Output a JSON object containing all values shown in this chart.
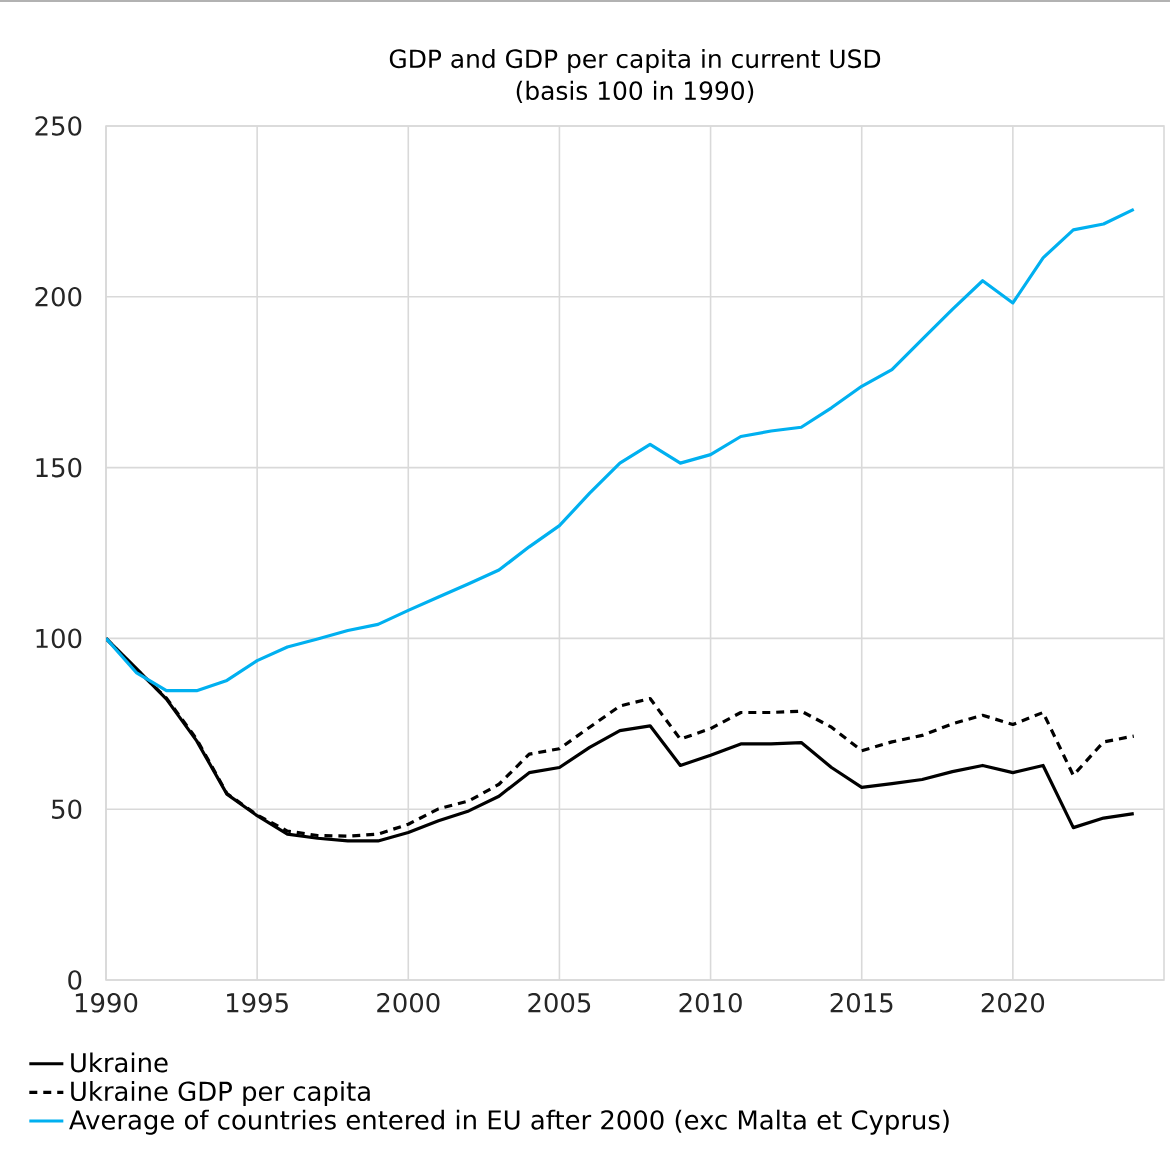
{
  "chart_data": {
    "type": "line",
    "title": "GDP and GDP per capita in current USD",
    "subtitle": "(basis 100 in 1990)",
    "x": [
      1990,
      1991,
      1992,
      1993,
      1994,
      1995,
      1996,
      1997,
      1998,
      1999,
      2000,
      2001,
      2002,
      2003,
      2004,
      2005,
      2006,
      2007,
      2008,
      2009,
      2010,
      2011,
      2012,
      2013,
      2014,
      2015,
      2016,
      2017,
      2018,
      2019,
      2020,
      2021,
      2022,
      2023,
      2024
    ],
    "series": [
      {
        "name": "Ukraine",
        "color": "#000000",
        "line_style": "solid",
        "values": [
          100,
          91.2,
          82.2,
          70,
          54.4,
          48.1,
          42.7,
          41.5,
          40.7,
          40.7,
          43.2,
          46.6,
          49.5,
          53.8,
          60.7,
          62.2,
          68.1,
          73,
          74.4,
          62.8,
          65.8,
          69.1,
          69.1,
          69.5,
          62.2,
          56.4,
          57.5,
          58.7,
          61,
          62.8,
          60.7,
          62.8,
          44.6,
          47.4,
          48.7
        ]
      },
      {
        "name": "Ukraine GDP per capita",
        "color": "#000000",
        "line_style": "dashed",
        "values": [
          100,
          91,
          82.5,
          70.5,
          54.6,
          48.3,
          43.6,
          42.3,
          42.1,
          42.7,
          45.6,
          50.1,
          52.4,
          57.3,
          66.1,
          67.7,
          74,
          80.2,
          82.4,
          70.5,
          73.6,
          78.3,
          78.3,
          78.7,
          74,
          67.1,
          69.7,
          71.6,
          75,
          77.5,
          74.8,
          78.3,
          59.9,
          69.7,
          71.4
        ]
      },
      {
        "name": "Average of countries entered in EU after 2000 (exc Malta et Cyprus)",
        "color": "#00b0f0",
        "line_style": "solid",
        "values": [
          100,
          90,
          84.7,
          84.7,
          87.7,
          93.5,
          97.5,
          99.8,
          102.3,
          104.1,
          108.2,
          112.1,
          116,
          120,
          126.8,
          133,
          142.5,
          151.3,
          156.8,
          151.3,
          153.8,
          159.1,
          160.7,
          161.8,
          167.5,
          173.8,
          178.7,
          187.5,
          196.3,
          204.7,
          198.2,
          211.4,
          219.6,
          221.3,
          225.6
        ]
      }
    ],
    "xlim": [
      1990,
      2025
    ],
    "ylim": [
      0,
      250
    ],
    "xticks": [
      1990,
      1995,
      2000,
      2005,
      2010,
      2015,
      2020
    ],
    "yticks": [
      0,
      50,
      100,
      150,
      200,
      250
    ],
    "grid": true,
    "legend": "bottom",
    "marker": "none"
  }
}
